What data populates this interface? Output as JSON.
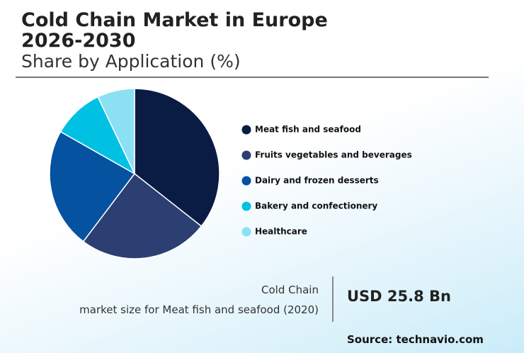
{
  "chart_data": {
    "type": "pie",
    "title": "Cold Chain Market in Europe 2026-2030",
    "subtitle": "Share by Application (%)",
    "categories": [
      "Meat fish and seafood",
      "Fruits vegetables and beverages",
      "Dairy and frozen desserts",
      "Bakery and confectionery",
      "Healthcare"
    ],
    "values": [
      35.6,
      24.7,
      22.9,
      9.7,
      7.1
    ],
    "colors": [
      "#0a1c44",
      "#2c3f72",
      "#0552a1",
      "#00c1e2",
      "#8be0f3"
    ],
    "legend": "right",
    "annotation": {
      "line1": "Cold Chain",
      "line2": "market size for Meat fish and seafood (2020)",
      "value": "USD 25.8 Bn"
    },
    "source": "Source: technavio.com"
  }
}
